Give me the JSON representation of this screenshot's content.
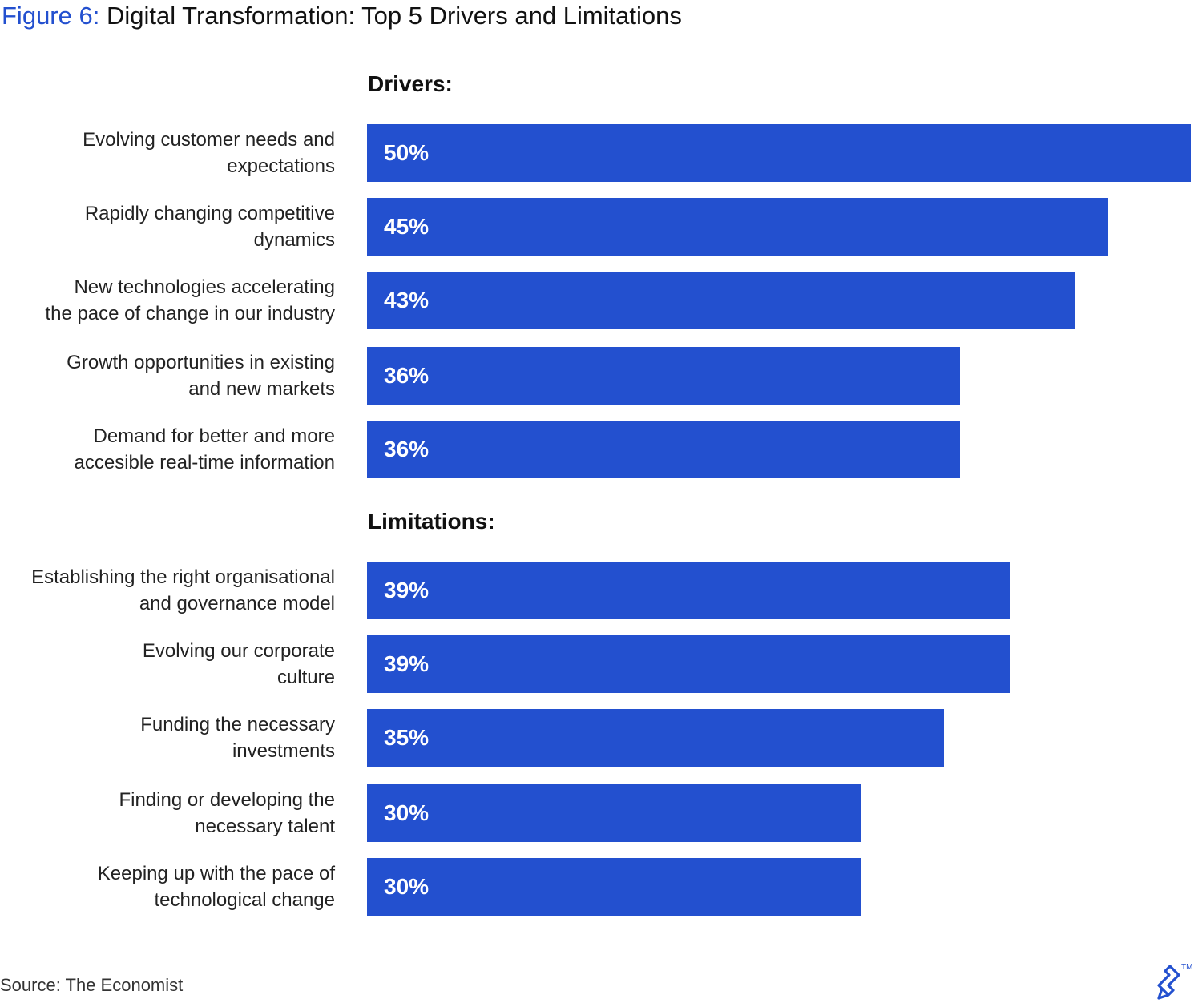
{
  "title": {
    "figure_label": "Figure 6:",
    "text": "Digital Transformation: Top 5 Drivers and Limitations"
  },
  "source": "Source: The Economist",
  "colors": {
    "bar": "#2350cf",
    "figure_label": "#2350cf"
  },
  "brand_icon": "toptal-logo-icon",
  "chart_data": {
    "type": "bar",
    "orientation": "horizontal",
    "title": "Digital Transformation: Top 5 Drivers and Limitations",
    "xlim": [
      0,
      50
    ],
    "grid": false,
    "legend": "none",
    "groups": [
      {
        "name": "Drivers:",
        "categories": [
          [
            "Evolving customer needs and",
            "expectations"
          ],
          [
            "Rapidly changing competitive",
            "dynamics"
          ],
          [
            "New technologies accelerating",
            "the pace of change in our industry"
          ],
          [
            "Growth opportunities in existing",
            "and new markets"
          ],
          [
            "Demand for better and more",
            "accesible real-time information"
          ]
        ],
        "values": [
          50,
          45,
          43,
          36,
          36
        ],
        "labels": [
          "50%",
          "45%",
          "43%",
          "36%",
          "36%"
        ]
      },
      {
        "name": "Limitations:",
        "categories": [
          [
            "Establishing the right organisational",
            "and governance model"
          ],
          [
            "Evolving our corporate",
            "culture"
          ],
          [
            "Funding the necessary",
            "investments"
          ],
          [
            "Finding or developing the",
            "necessary talent"
          ],
          [
            "Keeping up with the pace of",
            "technological change"
          ]
        ],
        "values": [
          39,
          39,
          35,
          30,
          30
        ],
        "labels": [
          "39%",
          "39%",
          "35%",
          "30%",
          "30%"
        ]
      }
    ]
  }
}
